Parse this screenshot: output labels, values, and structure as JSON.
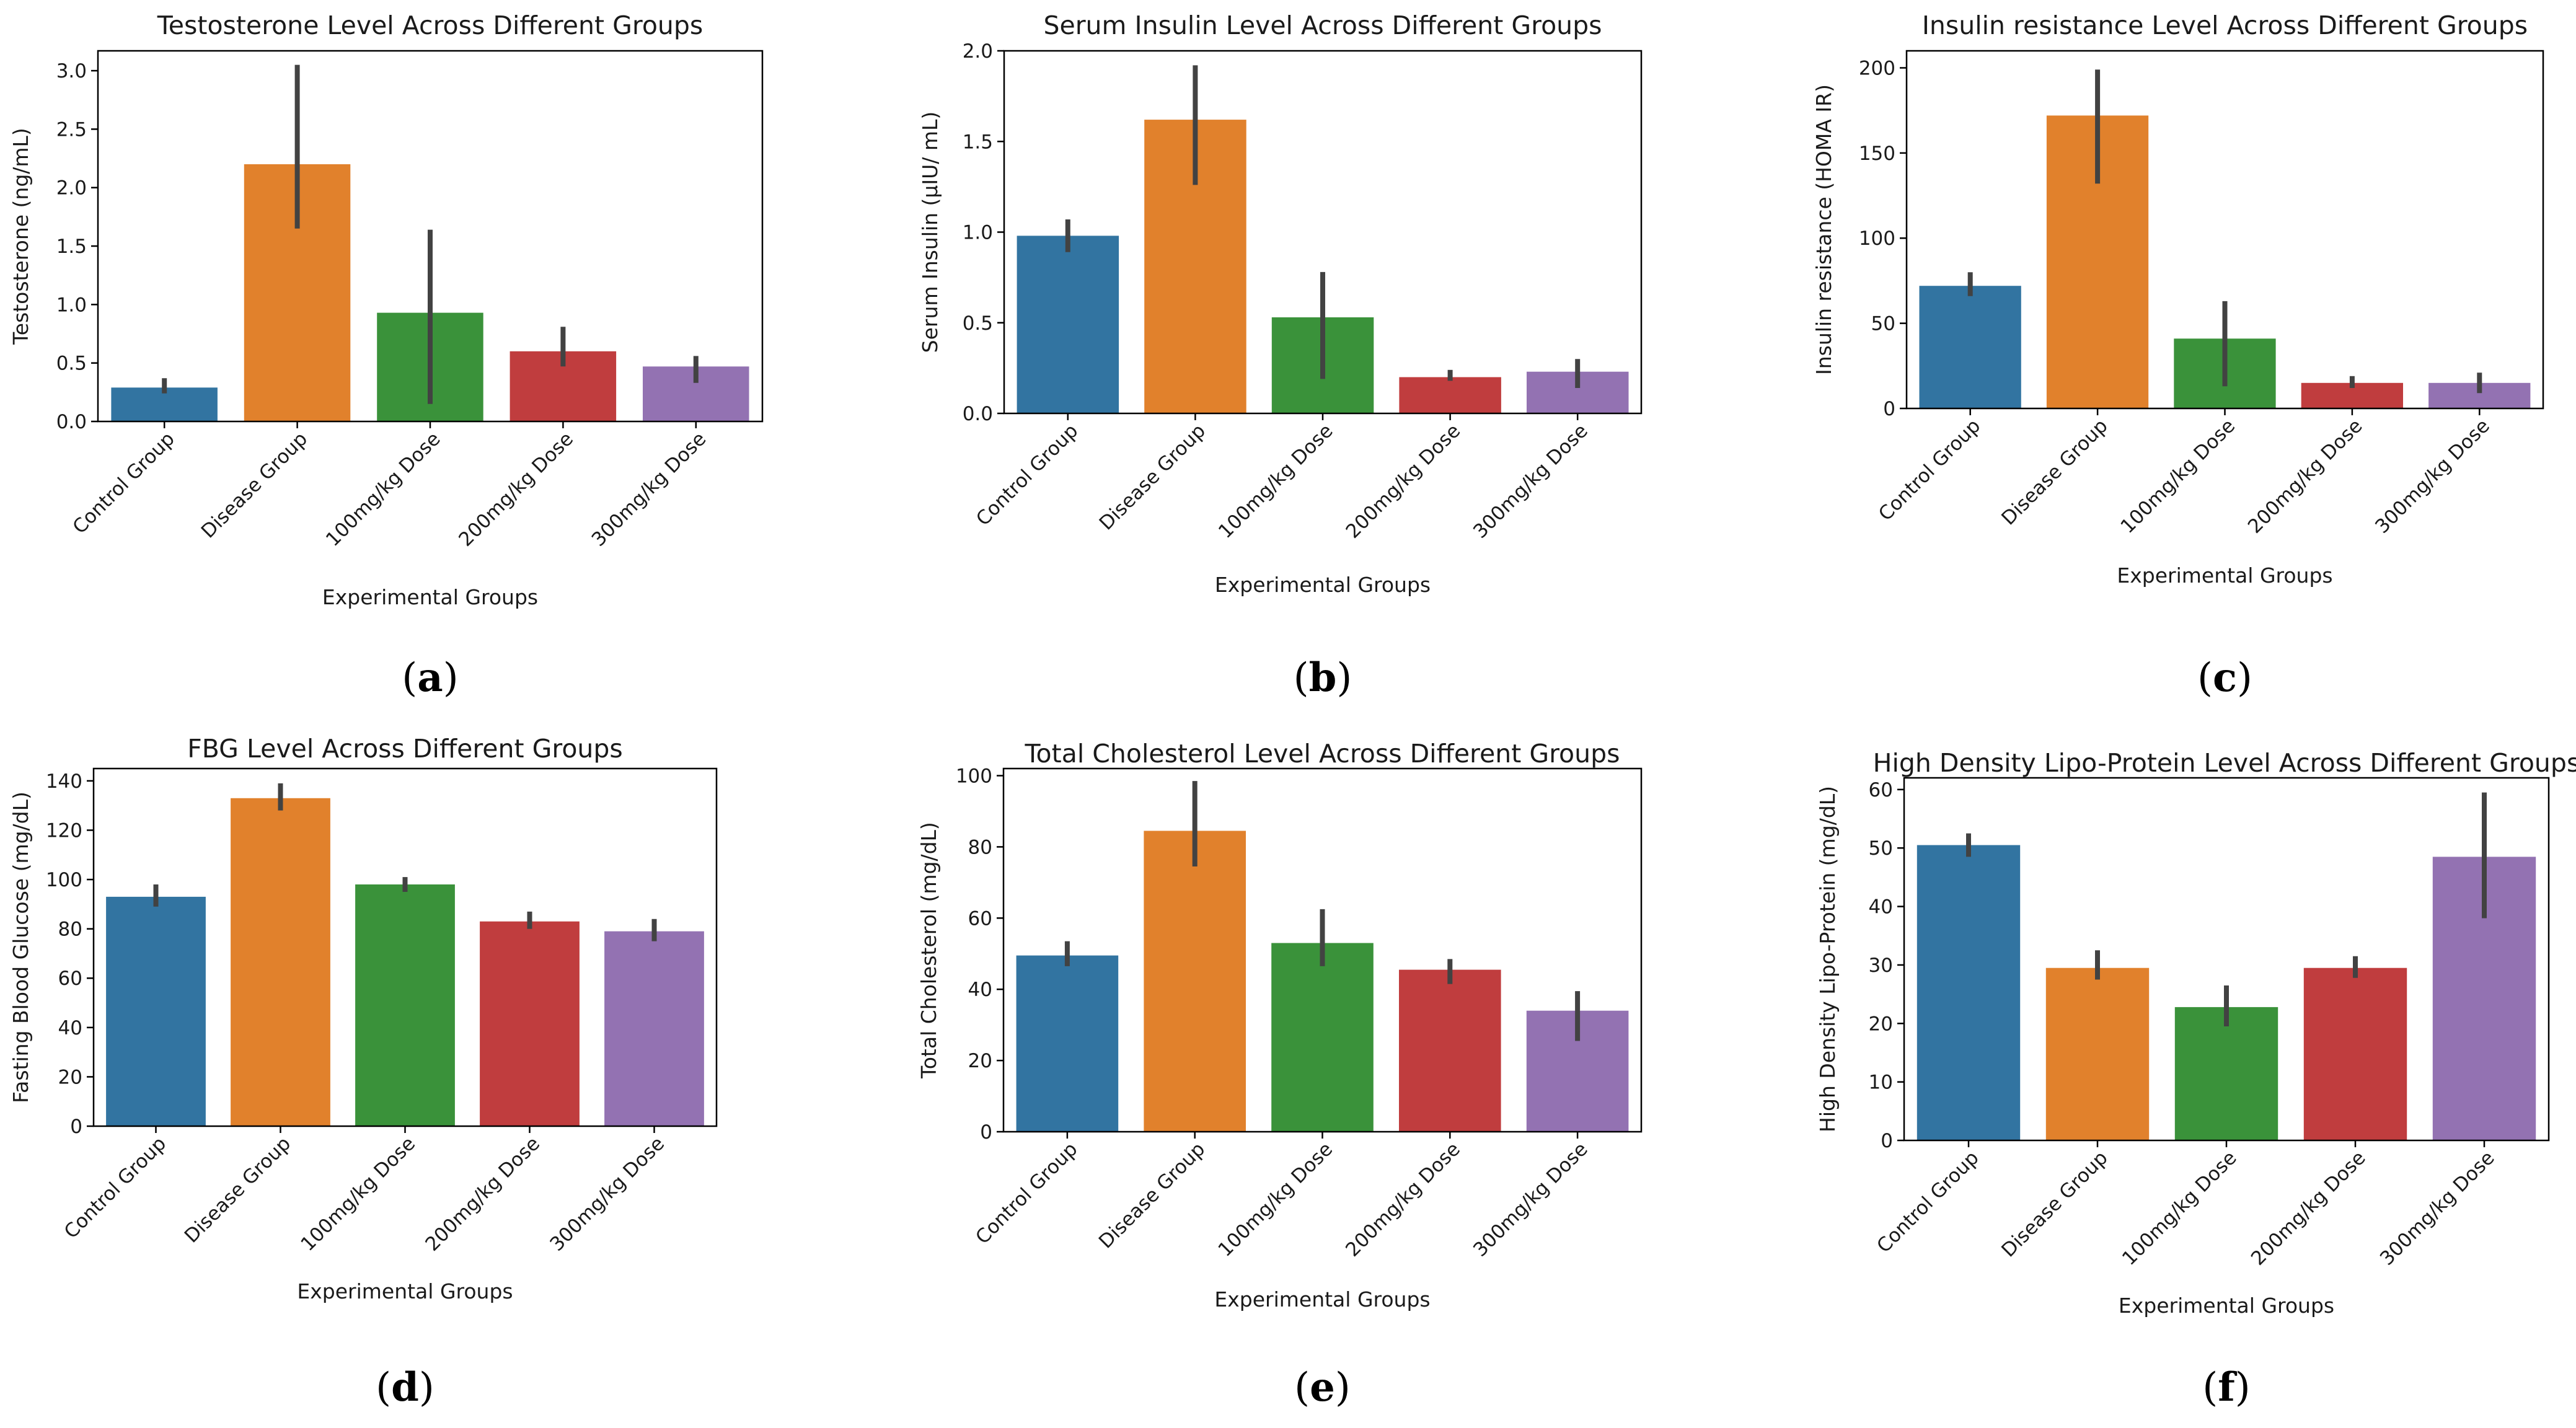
{
  "palette": [
    "#3274a1",
    "#e1812c",
    "#3a923a",
    "#c03d3e",
    "#9372b2"
  ],
  "chart_data": [
    {
      "type": "bar",
      "panel_label": "a",
      "title": "Testosterone Level Across Different Groups",
      "xlabel": "Experimental Groups",
      "ylabel": "Testosterone (ng/mL)",
      "categories": [
        "Control Group",
        "Disease Group",
        "100mg/kg Dose",
        "200mg/kg Dose",
        "300mg/kg Dose"
      ],
      "values": [
        0.29,
        2.2,
        0.93,
        0.6,
        0.47
      ],
      "error_low": [
        0.24,
        1.65,
        0.15,
        0.47,
        0.33
      ],
      "error_high": [
        0.37,
        3.05,
        1.64,
        0.81,
        0.56
      ],
      "ylim": [
        0,
        3.17
      ],
      "yticks": [
        0.0,
        0.5,
        1.0,
        1.5,
        2.0,
        2.5,
        3.0
      ],
      "ytick_labels": [
        "0.0",
        "0.5",
        "1.0",
        "1.5",
        "2.0",
        "2.5",
        "3.0"
      ],
      "grid": false
    },
    {
      "type": "bar",
      "panel_label": "b",
      "title": "Serum Insulin Level Across Different Groups",
      "xlabel": "Experimental Groups",
      "ylabel": "Serum Insulin (μIU/ mL)",
      "categories": [
        "Control Group",
        "Disease Group",
        "100mg/kg Dose",
        "200mg/kg Dose",
        "300mg/kg Dose"
      ],
      "values": [
        0.98,
        1.62,
        0.53,
        0.2,
        0.23
      ],
      "error_low": [
        0.89,
        1.26,
        0.19,
        0.18,
        0.14
      ],
      "error_high": [
        1.07,
        1.92,
        0.78,
        0.24,
        0.3
      ],
      "ylim": [
        0,
        2.0
      ],
      "yticks": [
        0.0,
        0.5,
        1.0,
        1.5,
        2.0
      ],
      "ytick_labels": [
        "0.0",
        "0.5",
        "1.0",
        "1.5",
        "2.0"
      ],
      "grid": false
    },
    {
      "type": "bar",
      "panel_label": "c",
      "title": "Insulin resistance Level Across Different Groups",
      "xlabel": "Experimental Groups",
      "ylabel": "Insulin resistance (HOMA IR)",
      "categories": [
        "Control Group",
        "Disease Group",
        "100mg/kg Dose",
        "200mg/kg Dose",
        "300mg/kg Dose"
      ],
      "values": [
        72,
        172,
        41,
        15,
        15
      ],
      "error_low": [
        66,
        132,
        13,
        12,
        9
      ],
      "error_high": [
        80,
        199,
        63,
        19,
        21
      ],
      "ylim": [
        0,
        210
      ],
      "yticks": [
        0,
        50,
        100,
        150,
        200
      ],
      "ytick_labels": [
        "0",
        "50",
        "100",
        "150",
        "200"
      ],
      "grid": false
    },
    {
      "type": "bar",
      "panel_label": "d",
      "title": "FBG Level Across Different Groups",
      "xlabel": "Experimental Groups",
      "ylabel": "Fasting Blood Glucose (mg/dL)",
      "categories": [
        "Control Group",
        "Disease Group",
        "100mg/kg Dose",
        "200mg/kg Dose",
        "300mg/kg Dose"
      ],
      "values": [
        93,
        133,
        98,
        83,
        79
      ],
      "error_low": [
        89,
        128,
        95,
        80,
        75
      ],
      "error_high": [
        98,
        139,
        101,
        87,
        84
      ],
      "ylim": [
        0,
        145
      ],
      "yticks": [
        0,
        20,
        40,
        60,
        80,
        100,
        120,
        140
      ],
      "ytick_labels": [
        "0",
        "20",
        "40",
        "60",
        "80",
        "100",
        "120",
        "140"
      ],
      "grid": false
    },
    {
      "type": "bar",
      "panel_label": "e",
      "title": "Total Cholesterol Level Across Different Groups",
      "xlabel": "Experimental Groups",
      "ylabel": "Total Cholesterol (mg/dL)",
      "categories": [
        "Control Group",
        "Disease Group",
        "100mg/kg Dose",
        "200mg/kg Dose",
        "300mg/kg Dose"
      ],
      "values": [
        49.5,
        84.5,
        53,
        45.5,
        34
      ],
      "error_low": [
        46.5,
        74.5,
        46.5,
        41.5,
        25.5
      ],
      "error_high": [
        53.5,
        98.5,
        62.5,
        48.5,
        39.5
      ],
      "ylim": [
        0,
        102
      ],
      "yticks": [
        0,
        20,
        40,
        60,
        80,
        100
      ],
      "ytick_labels": [
        "0",
        "20",
        "40",
        "60",
        "80",
        "100"
      ],
      "grid": false
    },
    {
      "type": "bar",
      "panel_label": "f",
      "title": "High Density Lipo-Protein Level Across Different Groups",
      "xlabel": "Experimental Groups",
      "ylabel": "High Density Lipo-Protein (mg/dL)",
      "categories": [
        "Control Group",
        "Disease Group",
        "100mg/kg Dose",
        "200mg/kg Dose",
        "300mg/kg Dose"
      ],
      "values": [
        50.5,
        29.5,
        22.8,
        29.5,
        48.5
      ],
      "error_low": [
        48.5,
        27.5,
        19.5,
        27.8,
        38
      ],
      "error_high": [
        52.5,
        32.5,
        26.5,
        31.5,
        59.5
      ],
      "ylim": [
        0,
        62
      ],
      "yticks": [
        0,
        10,
        20,
        30,
        40,
        50,
        60
      ],
      "ytick_labels": [
        "0",
        "10",
        "20",
        "30",
        "40",
        "50",
        "60"
      ],
      "grid": false
    }
  ]
}
